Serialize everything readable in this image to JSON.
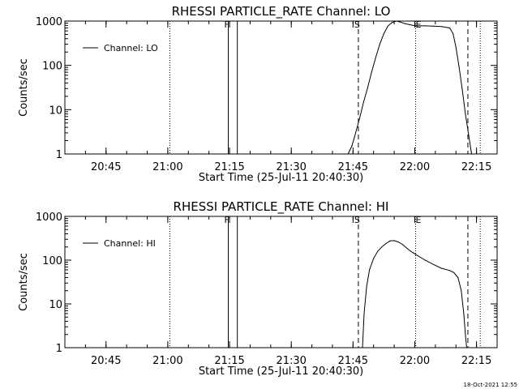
{
  "footer_timestamp": "18-Oct-2021 12:55",
  "chart_data": [
    {
      "type": "line",
      "title": "RHESSI PARTICLE_RATE Channel: LO",
      "xlabel": "Start Time (25-Jul-11 20:40:30)",
      "ylabel": "Counts/sec",
      "yscale": "log",
      "ylim": [
        1,
        1000
      ],
      "xlim_minutes": [
        -5.5,
        99.5
      ],
      "x_tick_labels": [
        "20:45",
        "21:00",
        "21:15",
        "21:30",
        "21:45",
        "22:00",
        "22:15"
      ],
      "x_tick_minutes": [
        4.5,
        19.5,
        34.5,
        49.5,
        64.5,
        79.5,
        94.5
      ],
      "y_tick_labels": [
        "1",
        "10",
        "100",
        "1000"
      ],
      "y_tick_values": [
        1,
        10,
        100,
        1000
      ],
      "legend": "Channel: LO",
      "legend_position": "top-left",
      "markers": [
        {
          "label": "F",
          "minute": 34.2,
          "style": "solid"
        },
        {
          "label": "",
          "minute": 36.4,
          "style": "solid"
        },
        {
          "label": "S",
          "minute": 65.8,
          "style": "dashed"
        },
        {
          "label": "E",
          "minute": 79.7,
          "style": "dotted"
        },
        {
          "label": "",
          "minute": 92.4,
          "style": "dashed"
        },
        {
          "label": "",
          "minute": 20.0,
          "style": "dotted"
        },
        {
          "label": "",
          "minute": 95.4,
          "style": "dotted"
        }
      ],
      "series": [
        {
          "name": "Channel: LO",
          "x_minutes": [
            63.3,
            64.2,
            64.9,
            65.5,
            66.2,
            67.0,
            68.0,
            69.0,
            70.0,
            71.0,
            72.0,
            73.0,
            74.0,
            75.0,
            76.0,
            77.0,
            78.0,
            79.0,
            80.0,
            82.0,
            84.0,
            86.0,
            88.0,
            88.8,
            89.5,
            90.2,
            91.0,
            91.8,
            92.8,
            93.3
          ],
          "values": [
            1,
            1.5,
            2.5,
            4,
            7,
            14,
            30,
            70,
            150,
            300,
            520,
            780,
            930,
            1000,
            950,
            880,
            840,
            800,
            780,
            780,
            770,
            750,
            700,
            520,
            260,
            100,
            30,
            8,
            2,
            1
          ]
        }
      ]
    },
    {
      "type": "line",
      "title": "RHESSI PARTICLE_RATE Channel: HI",
      "xlabel": "Start Time (25-Jul-11 20:40:30)",
      "ylabel": "Counts/sec",
      "yscale": "log",
      "ylim": [
        1,
        1000
      ],
      "xlim_minutes": [
        -5.5,
        99.5
      ],
      "x_tick_labels": [
        "20:45",
        "21:00",
        "21:15",
        "21:30",
        "21:45",
        "22:00",
        "22:15"
      ],
      "x_tick_minutes": [
        4.5,
        19.5,
        34.5,
        49.5,
        64.5,
        79.5,
        94.5
      ],
      "y_tick_labels": [
        "1",
        "10",
        "100",
        "1000"
      ],
      "y_tick_values": [
        1,
        10,
        100,
        1000
      ],
      "legend": "Channel: HI",
      "legend_position": "top-left",
      "markers": [
        {
          "label": "F",
          "minute": 34.2,
          "style": "solid"
        },
        {
          "label": "",
          "minute": 36.4,
          "style": "solid"
        },
        {
          "label": "S",
          "minute": 65.8,
          "style": "dashed"
        },
        {
          "label": "E",
          "minute": 79.7,
          "style": "dotted"
        },
        {
          "label": "",
          "minute": 92.4,
          "style": "dashed"
        },
        {
          "label": "",
          "minute": 20.0,
          "style": "dotted"
        },
        {
          "label": "",
          "minute": 95.4,
          "style": "dotted"
        }
      ],
      "series": [
        {
          "name": "Channel: HI",
          "x_minutes": [
            66.8,
            67.2,
            67.8,
            68.5,
            69.5,
            70.5,
            71.5,
            72.5,
            73.5,
            74.5,
            75.5,
            76.5,
            77.5,
            78.5,
            80.0,
            82.0,
            84.0,
            86.0,
            88.0,
            89.0,
            90.0,
            90.8,
            91.4,
            91.8,
            92.1
          ],
          "values": [
            1,
            6,
            25,
            60,
            110,
            160,
            200,
            240,
            275,
            280,
            260,
            230,
            190,
            160,
            130,
            100,
            80,
            65,
            58,
            52,
            40,
            20,
            6,
            2,
            1
          ]
        }
      ]
    }
  ]
}
